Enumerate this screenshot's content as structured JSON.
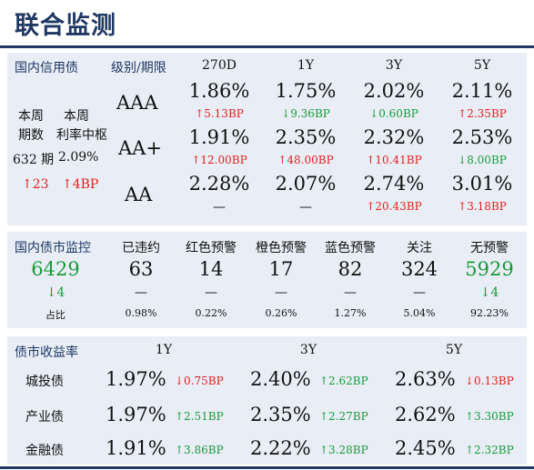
{
  "title": "联合监测",
  "colors": {
    "accent": "#1f3864",
    "panel": "#e9eef6",
    "up": "#e0201b",
    "down": "#1a9a3a"
  },
  "issuance": {
    "section_label": "国内信用债",
    "rating_header": "级别/期限",
    "tenors": [
      "270D",
      "1Y",
      "3Y",
      "5Y"
    ],
    "week_count_label_1": "本周",
    "week_count_label_2": "期数",
    "week_rate_label_1": "本周",
    "week_rate_label_2": "利率中枢",
    "week_count": "632 期",
    "week_rate": "2.09%",
    "week_count_change": "↑23",
    "week_rate_change": "↑4BP",
    "rows": [
      {
        "rating": "AAA",
        "cells": [
          {
            "value": "1.86%",
            "change": "↑5.13BP",
            "dir": "up"
          },
          {
            "value": "1.75%",
            "change": "↓9.36BP",
            "dir": "down"
          },
          {
            "value": "2.02%",
            "change": "↓0.60BP",
            "dir": "down"
          },
          {
            "value": "2.11%",
            "change": "↑2.35BP",
            "dir": "up"
          }
        ]
      },
      {
        "rating": "AA+",
        "cells": [
          {
            "value": "1.91%",
            "change": "↑12.00BP",
            "dir": "up"
          },
          {
            "value": "2.35%",
            "change": "↑48.00BP",
            "dir": "up"
          },
          {
            "value": "2.32%",
            "change": "↑10.41BP",
            "dir": "up"
          },
          {
            "value": "2.53%",
            "change": "↓8.00BP",
            "dir": "down"
          }
        ]
      },
      {
        "rating": "AA",
        "cells": [
          {
            "value": "2.28%",
            "change": "—",
            "dir": "none"
          },
          {
            "value": "2.07%",
            "change": "—",
            "dir": "none"
          },
          {
            "value": "2.74%",
            "change": "↑20.43BP",
            "dir": "up"
          },
          {
            "value": "3.01%",
            "change": "↑3.18BP",
            "dir": "up"
          }
        ]
      }
    ]
  },
  "monitor": {
    "section_label": "国内债市监控",
    "total": "6429",
    "total_change": "↓4",
    "ratio_label": "占比",
    "categories": [
      {
        "label": "已违约",
        "count": "63",
        "change": "—",
        "ratio": "0.98%",
        "green": false
      },
      {
        "label": "红色预警",
        "count": "14",
        "change": "—",
        "ratio": "0.22%",
        "green": false
      },
      {
        "label": "橙色预警",
        "count": "17",
        "change": "—",
        "ratio": "0.26%",
        "green": false
      },
      {
        "label": "蓝色预警",
        "count": "82",
        "change": "—",
        "ratio": "1.27%",
        "green": false
      },
      {
        "label": "关注",
        "count": "324",
        "change": "—",
        "ratio": "5.04%",
        "green": false
      },
      {
        "label": "无预警",
        "count": "5929",
        "change": "↓4",
        "ratio": "92.23%",
        "green": true
      }
    ]
  },
  "yields": {
    "section_label": "债市收益率",
    "tenors": [
      "1Y",
      "3Y",
      "5Y"
    ],
    "rows": [
      {
        "name": "城投债",
        "cells": [
          {
            "value": "1.97%",
            "change": "↓0.75BP",
            "dir": "up"
          },
          {
            "value": "2.40%",
            "change": "↑2.62BP",
            "dir": "down"
          },
          {
            "value": "2.63%",
            "change": "↓0.13BP",
            "dir": "up"
          }
        ]
      },
      {
        "name": "产业债",
        "cells": [
          {
            "value": "1.97%",
            "change": "↑2.51BP",
            "dir": "down"
          },
          {
            "value": "2.35%",
            "change": "↑2.27BP",
            "dir": "down"
          },
          {
            "value": "2.62%",
            "change": "↑3.30BP",
            "dir": "down"
          }
        ]
      },
      {
        "name": "金融债",
        "cells": [
          {
            "value": "1.91%",
            "change": "↑3.86BP",
            "dir": "down"
          },
          {
            "value": "2.22%",
            "change": "↑3.28BP",
            "dir": "down"
          },
          {
            "value": "2.45%",
            "change": "↑2.32BP",
            "dir": "down"
          }
        ]
      }
    ]
  }
}
